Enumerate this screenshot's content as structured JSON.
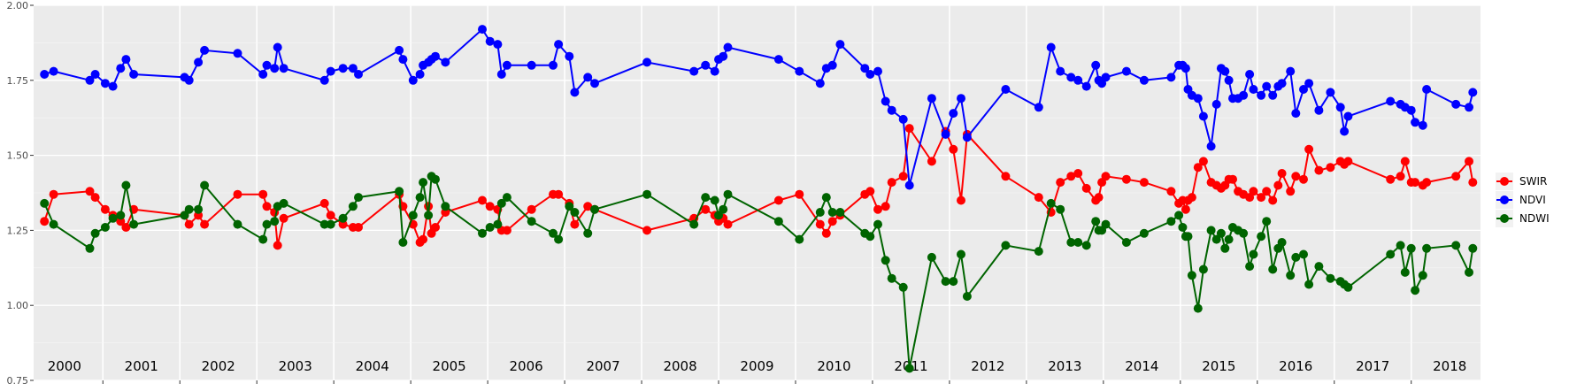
{
  "chart_data": {
    "type": "line",
    "title": "",
    "xlabel": "",
    "ylabel": "",
    "ylim": [
      0.75,
      2.0
    ],
    "xlim": [
      1999.6,
      2018.4
    ],
    "yticks": [
      "0.75",
      "1.00",
      "1.25",
      "1.50",
      "1.75",
      "2.00"
    ],
    "year_labels": [
      "2000",
      "2001",
      "2002",
      "2003",
      "2004",
      "2005",
      "2006",
      "2007",
      "2008",
      "2009",
      "2010",
      "2011",
      "2012",
      "2013",
      "2014",
      "2015",
      "2016",
      "2017",
      "2018"
    ],
    "grid": true,
    "legend_position": "right",
    "series": [
      {
        "name": "SWIR",
        "color": "#ff0000",
        "x": [
          1999.74,
          1999.86,
          2000.33,
          2000.4,
          2000.53,
          2000.63,
          2000.73,
          2000.8,
          2000.9,
          2001.56,
          2001.62,
          2001.74,
          2001.82,
          2002.25,
          2002.58,
          2002.63,
          2002.73,
          2002.77,
          2002.85,
          2003.38,
          2003.46,
          2003.62,
          2003.75,
          2003.82,
          2004.35,
          2004.4,
          2004.53,
          2004.62,
          2004.66,
          2004.73,
          2004.77,
          2004.82,
          2004.95,
          2005.43,
          2005.53,
          2005.63,
          2005.68,
          2005.75,
          2006.07,
          2006.35,
          2006.42,
          2006.56,
          2006.63,
          2006.8,
          2006.89,
          2007.57,
          2008.18,
          2008.33,
          2008.45,
          2008.5,
          2008.56,
          2008.62,
          2009.28,
          2009.55,
          2009.82,
          2009.9,
          2009.98,
          2010.08,
          2010.4,
          2010.47,
          2010.57,
          2010.67,
          2010.75,
          2010.9,
          2010.98,
          2011.27,
          2011.45,
          2011.55,
          2011.65,
          2011.73,
          2012.23,
          2012.66,
          2012.82,
          2012.94,
          2013.08,
          2013.17,
          2013.28,
          2013.4,
          2013.44,
          2013.48,
          2013.53,
          2013.8,
          2014.03,
          2014.38,
          2014.48,
          2014.53,
          2014.57,
          2014.6,
          2014.65,
          2014.73,
          2014.8,
          2014.9,
          2014.97,
          2015.03,
          2015.08,
          2015.13,
          2015.18,
          2015.25,
          2015.32,
          2015.4,
          2015.45,
          2015.55,
          2015.62,
          2015.7,
          2015.77,
          2015.82,
          2015.93,
          2016.0,
          2016.1,
          2016.17,
          2016.3,
          2016.45,
          2016.58,
          2016.63,
          2016.68,
          2017.23,
          2017.36,
          2017.42,
          2017.5,
          2017.55,
          2017.65,
          2017.7,
          2018.08,
          2018.25,
          2018.3
        ],
        "values": [
          1.28,
          1.37,
          1.38,
          1.36,
          1.32,
          1.3,
          1.28,
          1.26,
          1.32,
          1.3,
          1.27,
          1.3,
          1.27,
          1.37,
          1.37,
          1.33,
          1.31,
          1.2,
          1.29,
          1.34,
          1.3,
          1.27,
          1.26,
          1.26,
          1.37,
          1.33,
          1.27,
          1.21,
          1.22,
          1.33,
          1.24,
          1.26,
          1.31,
          1.35,
          1.33,
          1.32,
          1.25,
          1.25,
          1.32,
          1.37,
          1.37,
          1.34,
          1.27,
          1.33,
          1.32,
          1.25,
          1.29,
          1.32,
          1.3,
          1.28,
          1.29,
          1.27,
          1.35,
          1.37,
          1.27,
          1.24,
          1.28,
          1.3,
          1.37,
          1.38,
          1.32,
          1.33,
          1.41,
          1.43,
          1.59,
          1.48,
          1.58,
          1.52,
          1.35,
          1.57,
          1.43,
          1.36,
          1.31,
          1.41,
          1.43,
          1.44,
          1.39,
          1.35,
          1.36,
          1.41,
          1.43,
          1.42,
          1.41,
          1.38,
          1.34,
          1.35,
          1.32,
          1.35,
          1.36,
          1.46,
          1.48,
          1.41,
          1.4,
          1.39,
          1.4,
          1.42,
          1.42,
          1.38,
          1.37,
          1.36,
          1.38,
          1.36,
          1.38,
          1.35,
          1.4,
          1.44,
          1.38,
          1.43,
          1.42,
          1.52,
          1.45,
          1.46,
          1.48,
          1.47,
          1.48,
          1.42,
          1.43,
          1.48,
          1.41,
          1.41,
          1.4,
          1.41,
          1.43,
          1.48,
          1.41
        ],
        "note": ""
      },
      {
        "name": "NDVI",
        "color": "#0000ff",
        "x": [
          1999.74,
          1999.86,
          2000.33,
          2000.4,
          2000.53,
          2000.63,
          2000.73,
          2000.8,
          2000.9,
          2001.56,
          2001.62,
          2001.74,
          2001.82,
          2002.25,
          2002.58,
          2002.63,
          2002.73,
          2002.77,
          2002.85,
          2003.38,
          2003.46,
          2003.62,
          2003.75,
          2003.82,
          2004.35,
          2004.4,
          2004.53,
          2004.62,
          2004.66,
          2004.73,
          2004.77,
          2004.82,
          2004.95,
          2005.43,
          2005.53,
          2005.63,
          2005.68,
          2005.75,
          2006.07,
          2006.35,
          2006.42,
          2006.56,
          2006.63,
          2006.8,
          2006.89,
          2007.57,
          2008.18,
          2008.33,
          2008.45,
          2008.5,
          2008.56,
          2008.62,
          2009.28,
          2009.55,
          2009.82,
          2009.9,
          2009.98,
          2010.08,
          2010.4,
          2010.47,
          2010.57,
          2010.67,
          2010.75,
          2010.9,
          2010.98,
          2011.27,
          2011.45,
          2011.55,
          2011.65,
          2011.73,
          2012.23,
          2012.66,
          2012.82,
          2012.94,
          2013.08,
          2013.17,
          2013.28,
          2013.4,
          2013.44,
          2013.48,
          2013.53,
          2013.8,
          2014.03,
          2014.38,
          2014.48,
          2014.53,
          2014.57,
          2014.6,
          2014.65,
          2014.73,
          2014.8,
          2014.9,
          2014.97,
          2015.03,
          2015.08,
          2015.13,
          2015.18,
          2015.25,
          2015.32,
          2015.4,
          2015.45,
          2015.55,
          2015.62,
          2015.7,
          2015.77,
          2015.82,
          2015.93,
          2016.0,
          2016.1,
          2016.17,
          2016.3,
          2016.45,
          2016.58,
          2016.63,
          2016.68,
          2017.23,
          2017.36,
          2017.42,
          2017.5,
          2017.55,
          2017.65,
          2017.7,
          2018.08,
          2018.25,
          2018.3
        ],
        "values": [
          1.77,
          1.78,
          1.75,
          1.77,
          1.74,
          1.73,
          1.79,
          1.82,
          1.77,
          1.76,
          1.75,
          1.81,
          1.85,
          1.84,
          1.77,
          1.8,
          1.79,
          1.86,
          1.79,
          1.75,
          1.78,
          1.79,
          1.79,
          1.77,
          1.85,
          1.82,
          1.75,
          1.77,
          1.8,
          1.81,
          1.82,
          1.83,
          1.81,
          1.92,
          1.88,
          1.87,
          1.77,
          1.8,
          1.8,
          1.8,
          1.87,
          1.83,
          1.71,
          1.76,
          1.74,
          1.81,
          1.78,
          1.8,
          1.78,
          1.82,
          1.83,
          1.86,
          1.82,
          1.78,
          1.74,
          1.79,
          1.8,
          1.87,
          1.79,
          1.77,
          1.78,
          1.68,
          1.65,
          1.62,
          1.4,
          1.69,
          1.57,
          1.64,
          1.69,
          1.56,
          1.72,
          1.66,
          1.86,
          1.78,
          1.76,
          1.75,
          1.73,
          1.8,
          1.75,
          1.74,
          1.76,
          1.78,
          1.75,
          1.76,
          1.8,
          1.8,
          1.79,
          1.72,
          1.7,
          1.69,
          1.63,
          1.53,
          1.67,
          1.79,
          1.78,
          1.75,
          1.69,
          1.69,
          1.7,
          1.77,
          1.72,
          1.7,
          1.73,
          1.7,
          1.73,
          1.74,
          1.78,
          1.64,
          1.72,
          1.74,
          1.65,
          1.71,
          1.66,
          1.58,
          1.63,
          1.68,
          1.67,
          1.66,
          1.65,
          1.61,
          1.6,
          1.72,
          1.67,
          1.66,
          1.71
        ],
        "note": ""
      },
      {
        "name": "NDWI",
        "color": "#006400",
        "x": [
          1999.74,
          1999.86,
          2000.33,
          2000.4,
          2000.53,
          2000.63,
          2000.73,
          2000.8,
          2000.9,
          2001.56,
          2001.62,
          2001.74,
          2001.82,
          2002.25,
          2002.58,
          2002.63,
          2002.73,
          2002.77,
          2002.85,
          2003.38,
          2003.46,
          2003.62,
          2003.75,
          2003.82,
          2004.35,
          2004.4,
          2004.53,
          2004.62,
          2004.66,
          2004.73,
          2004.77,
          2004.82,
          2004.95,
          2005.43,
          2005.53,
          2005.63,
          2005.68,
          2005.75,
          2006.07,
          2006.35,
          2006.42,
          2006.56,
          2006.63,
          2006.8,
          2006.89,
          2007.57,
          2008.18,
          2008.33,
          2008.45,
          2008.5,
          2008.56,
          2008.62,
          2009.28,
          2009.55,
          2009.82,
          2009.9,
          2009.98,
          2010.08,
          2010.4,
          2010.47,
          2010.57,
          2010.67,
          2010.75,
          2010.9,
          2010.98,
          2011.27,
          2011.45,
          2011.55,
          2011.65,
          2011.73,
          2012.23,
          2012.66,
          2012.82,
          2012.94,
          2013.08,
          2013.17,
          2013.28,
          2013.4,
          2013.44,
          2013.48,
          2013.53,
          2013.8,
          2014.03,
          2014.38,
          2014.48,
          2014.53,
          2014.57,
          2014.6,
          2014.65,
          2014.73,
          2014.8,
          2014.9,
          2014.97,
          2015.03,
          2015.08,
          2015.13,
          2015.18,
          2015.25,
          2015.32,
          2015.4,
          2015.45,
          2015.55,
          2015.62,
          2015.7,
          2015.77,
          2015.82,
          2015.93,
          2016.0,
          2016.1,
          2016.17,
          2016.3,
          2016.45,
          2016.58,
          2016.63,
          2016.68,
          2017.23,
          2017.36,
          2017.42,
          2017.5,
          2017.55,
          2017.65,
          2017.7,
          2018.08,
          2018.25,
          2018.3
        ],
        "values": [
          1.34,
          1.27,
          1.19,
          1.24,
          1.26,
          1.29,
          1.3,
          1.4,
          1.27,
          1.3,
          1.32,
          1.32,
          1.4,
          1.27,
          1.22,
          1.27,
          1.28,
          1.33,
          1.34,
          1.27,
          1.27,
          1.29,
          1.33,
          1.36,
          1.38,
          1.21,
          1.3,
          1.36,
          1.41,
          1.3,
          1.43,
          1.42,
          1.33,
          1.24,
          1.26,
          1.27,
          1.34,
          1.36,
          1.28,
          1.24,
          1.22,
          1.33,
          1.31,
          1.24,
          1.32,
          1.37,
          1.27,
          1.36,
          1.35,
          1.3,
          1.32,
          1.37,
          1.28,
          1.22,
          1.31,
          1.36,
          1.31,
          1.31,
          1.24,
          1.23,
          1.27,
          1.15,
          1.09,
          1.06,
          0.79,
          1.16,
          1.08,
          1.08,
          1.17,
          1.03,
          1.2,
          1.18,
          1.34,
          1.32,
          1.21,
          1.21,
          1.2,
          1.28,
          1.25,
          1.25,
          1.27,
          1.21,
          1.24,
          1.28,
          1.3,
          1.26,
          1.23,
          1.23,
          1.1,
          0.99,
          1.12,
          1.25,
          1.22,
          1.24,
          1.19,
          1.22,
          1.26,
          1.25,
          1.24,
          1.13,
          1.17,
          1.23,
          1.28,
          1.12,
          1.19,
          1.21,
          1.1,
          1.16,
          1.17,
          1.07,
          1.13,
          1.09,
          1.08,
          1.07,
          1.06,
          1.17,
          1.2,
          1.11,
          1.19,
          1.05,
          1.1,
          1.19,
          1.2,
          1.11,
          1.19
        ],
        "note": ""
      }
    ]
  }
}
